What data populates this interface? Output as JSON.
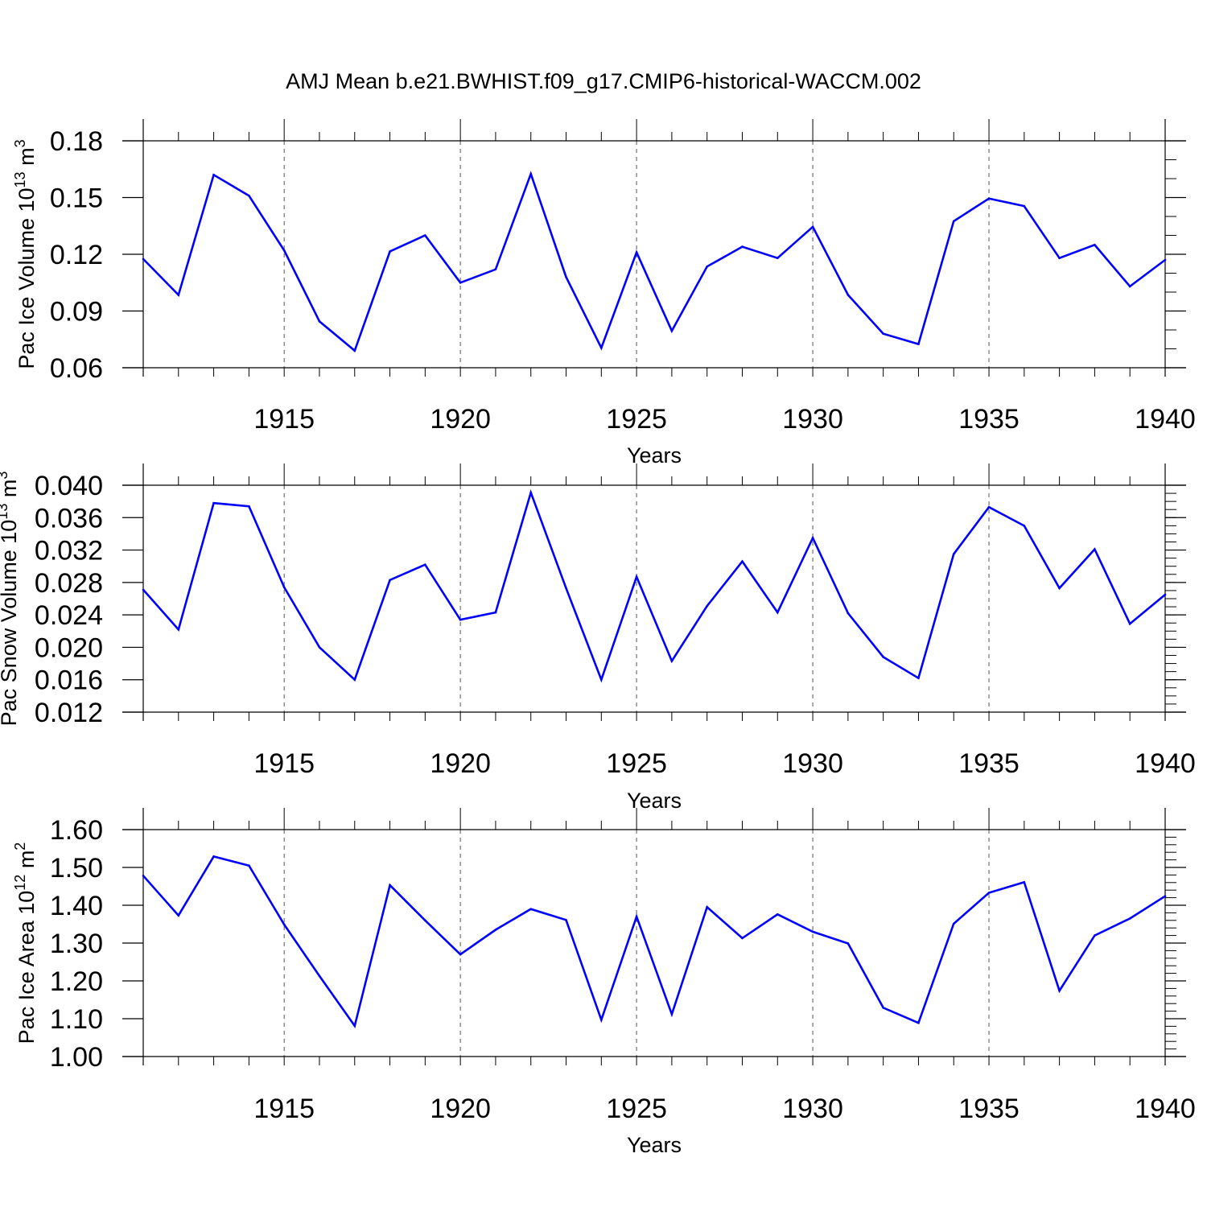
{
  "title": "AMJ Mean b.e21.BWHIST.f09_g17.CMIP6-historical-WACCM.002",
  "line_color": "#0000ff",
  "chart_data": [
    {
      "type": "line",
      "ylabel": "Pac Ice Volume 10",
      "ylabel_exp": "13",
      "ylabel_unit": "m",
      "ylabel_unit_exp": "3",
      "xlabel": "Years",
      "xlim": [
        1911,
        1940
      ],
      "ylim": [
        0.06,
        0.18
      ],
      "yticks": [
        0.06,
        0.09,
        0.12,
        0.15,
        0.18
      ],
      "ytick_labels": [
        "0.06",
        "0.09",
        "0.12",
        "0.15",
        "0.18"
      ],
      "yminor": 0.01,
      "xticks": [
        1915,
        1920,
        1925,
        1930,
        1935,
        1940
      ],
      "xtick_labels": [
        "1915",
        "1920",
        "1925",
        "1930",
        "1935",
        "1940"
      ],
      "x": [
        1911,
        1912,
        1913,
        1914,
        1915,
        1916,
        1917,
        1918,
        1919,
        1920,
        1921,
        1922,
        1923,
        1924,
        1925,
        1926,
        1927,
        1928,
        1929,
        1930,
        1931,
        1932,
        1933,
        1934,
        1935,
        1936,
        1937,
        1938,
        1939,
        1940
      ],
      "y": [
        0.1175,
        0.0985,
        0.162,
        0.151,
        0.122,
        0.0845,
        0.069,
        0.1215,
        0.13,
        0.105,
        0.112,
        0.1625,
        0.108,
        0.0705,
        0.121,
        0.0795,
        0.1135,
        0.124,
        0.118,
        0.1345,
        0.0985,
        0.078,
        0.0725,
        0.1375,
        0.1495,
        0.1455,
        0.118,
        0.125,
        0.103,
        0.117
      ]
    },
    {
      "type": "line",
      "ylabel": "Pac Snow Volume 10",
      "ylabel_exp": "13",
      "ylabel_unit": "m",
      "ylabel_unit_exp": "3",
      "xlabel": "Years",
      "xlim": [
        1911,
        1940
      ],
      "ylim": [
        0.012,
        0.04
      ],
      "yticks": [
        0.012,
        0.016,
        0.02,
        0.024,
        0.028,
        0.032,
        0.036,
        0.04
      ],
      "ytick_labels": [
        "0.012",
        "0.016",
        "0.020",
        "0.024",
        "0.028",
        "0.032",
        "0.036",
        "0.040"
      ],
      "yminor": 0.001,
      "xticks": [
        1915,
        1920,
        1925,
        1930,
        1935,
        1940
      ],
      "xtick_labels": [
        "1915",
        "1920",
        "1925",
        "1930",
        "1935",
        "1940"
      ],
      "x": [
        1911,
        1912,
        1913,
        1914,
        1915,
        1916,
        1917,
        1918,
        1919,
        1920,
        1921,
        1922,
        1923,
        1924,
        1925,
        1926,
        1927,
        1928,
        1929,
        1930,
        1931,
        1932,
        1933,
        1934,
        1935,
        1936,
        1937,
        1938,
        1939,
        1940
      ],
      "y": [
        0.0271,
        0.0222,
        0.0378,
        0.0374,
        0.0274,
        0.02,
        0.016,
        0.0283,
        0.0302,
        0.0234,
        0.0243,
        0.0391,
        0.0273,
        0.016,
        0.0287,
        0.0183,
        0.0251,
        0.0306,
        0.0243,
        0.0335,
        0.0242,
        0.0188,
        0.0162,
        0.0315,
        0.0373,
        0.035,
        0.0273,
        0.0321,
        0.0229,
        0.0265
      ]
    },
    {
      "type": "line",
      "ylabel": "Pac Ice Area 10",
      "ylabel_exp": "12",
      "ylabel_unit": "m",
      "ylabel_unit_exp": "2",
      "xlabel": "Years",
      "xlim": [
        1911,
        1940
      ],
      "ylim": [
        1.0,
        1.6
      ],
      "yticks": [
        1.0,
        1.1,
        1.2,
        1.3,
        1.4,
        1.5,
        1.6
      ],
      "ytick_labels": [
        "1.00",
        "1.10",
        "1.20",
        "1.30",
        "1.40",
        "1.50",
        "1.60"
      ],
      "yminor": 0.02,
      "xticks": [
        1915,
        1920,
        1925,
        1930,
        1935,
        1940
      ],
      "xtick_labels": [
        "1915",
        "1920",
        "1925",
        "1930",
        "1935",
        "1940"
      ],
      "x": [
        1911,
        1912,
        1913,
        1914,
        1915,
        1916,
        1917,
        1918,
        1919,
        1920,
        1921,
        1922,
        1923,
        1924,
        1925,
        1926,
        1927,
        1928,
        1929,
        1930,
        1931,
        1932,
        1933,
        1934,
        1935,
        1936,
        1937,
        1938,
        1939,
        1940
      ],
      "y": [
        1.478,
        1.373,
        1.529,
        1.505,
        1.349,
        1.213,
        1.081,
        1.453,
        1.36,
        1.27,
        1.335,
        1.39,
        1.361,
        1.097,
        1.37,
        1.112,
        1.395,
        1.313,
        1.376,
        1.33,
        1.299,
        1.129,
        1.089,
        1.351,
        1.433,
        1.461,
        1.174,
        1.32,
        1.365,
        1.424
      ]
    }
  ]
}
